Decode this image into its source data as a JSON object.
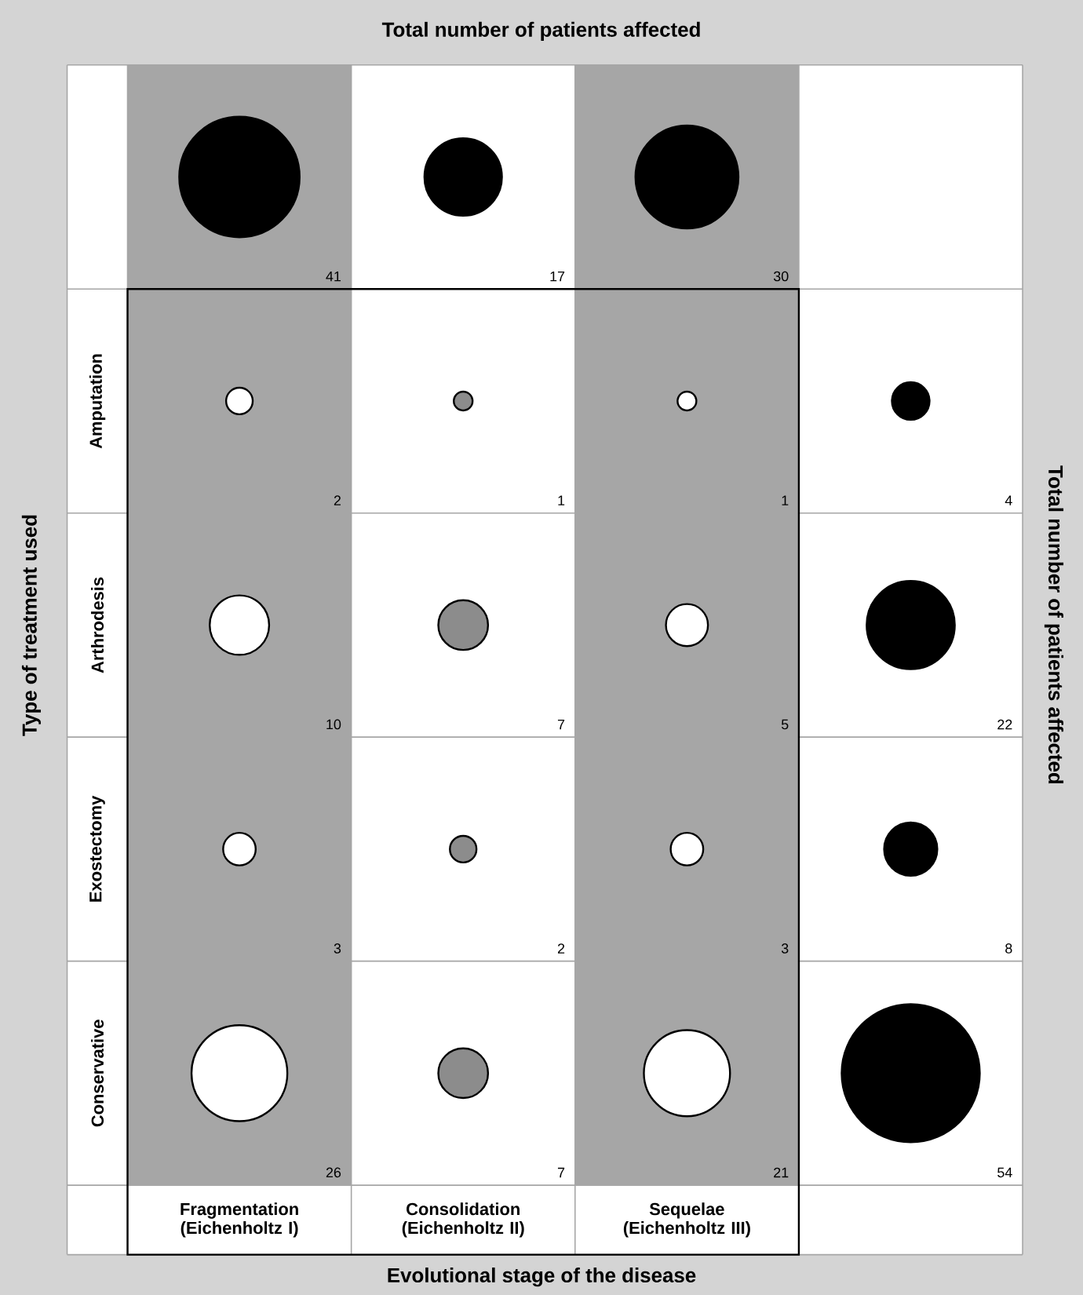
{
  "chart_data": {
    "type": "heatmap",
    "title": "Total number of patients affected",
    "xlabel": "Evolutional stage of the disease",
    "ylabel": "Type of treatment used",
    "y2label": "Total number of patients affected",
    "categories": [
      "Fragmentation (Eichenholtz I)",
      "Consolidation (Eichenholtz II)",
      "Sequelae (Eichenholtz III)",
      null
    ],
    "y_categories": [
      null,
      "Amputation",
      "Arthrodesis",
      "Exostectomy",
      "Conservative"
    ],
    "cells": [
      [
        41,
        17,
        30,
        null
      ],
      [
        2,
        1,
        1,
        4
      ],
      [
        10,
        7,
        5,
        22
      ],
      [
        3,
        2,
        3,
        8
      ],
      [
        26,
        7,
        21,
        54
      ]
    ],
    "data_labels": true
  }
}
